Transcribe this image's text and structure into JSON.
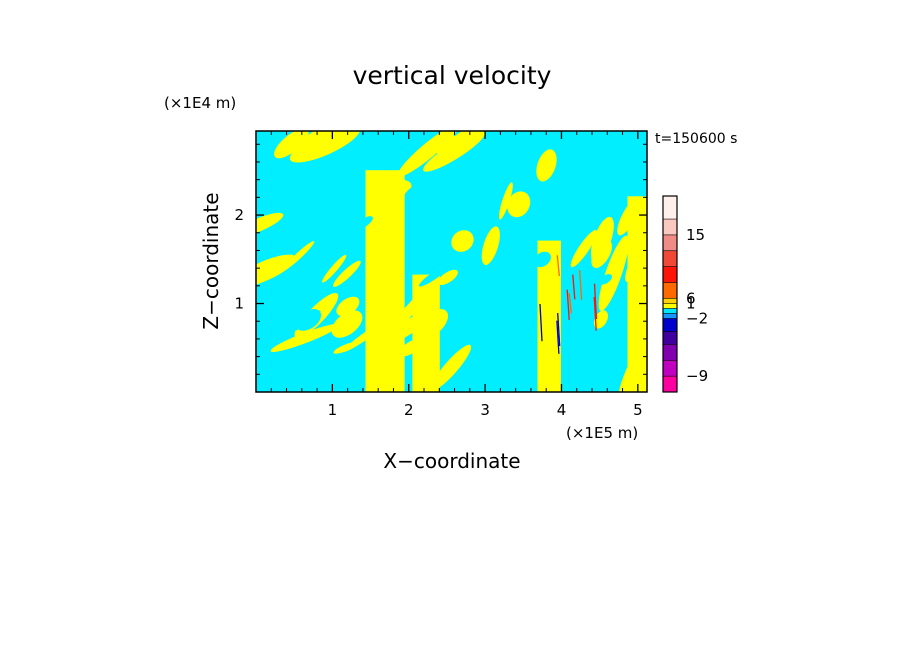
{
  "chart_data": {
    "type": "heatmap",
    "title": "vertical velocity",
    "xlabel": "X−coordinate",
    "ylabel": "Z−coordinate",
    "x_unit": "(×1E5 m)",
    "y_unit": "(×1E4 m)",
    "time_label": "t=150600 s",
    "xlim": [
      0,
      5.12
    ],
    "ylim": [
      0,
      2.95
    ],
    "x_ticks": [
      "1",
      "2",
      "3",
      "4",
      "5"
    ],
    "y_ticks": [
      "1",
      "2"
    ],
    "colorbar": {
      "labels": [
        "15",
        "6",
        "1",
        "−2",
        "−9"
      ],
      "colors": [
        "#FFF0EC",
        "#FAC8BE",
        "#F08C86",
        "#F04A36",
        "#FF1408",
        "#FF6A00",
        "#FFD200",
        "#FFFF00",
        "#00E6FF",
        "#1896FF",
        "#0000CC",
        "#4000A0",
        "#8000B0",
        "#C000C0",
        "#FF00A0"
      ]
    },
    "dominant_colors": {
      "positive": "#FFFF00",
      "negative": "#00EEFF"
    }
  }
}
